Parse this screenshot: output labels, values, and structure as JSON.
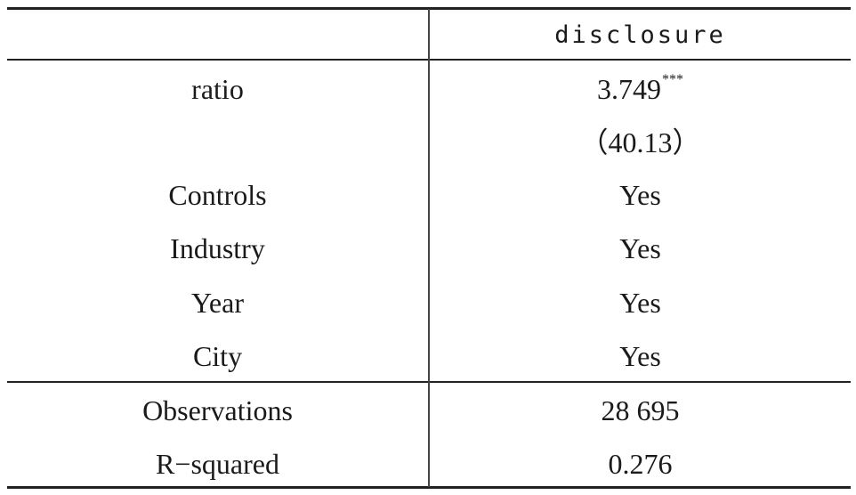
{
  "table": {
    "header": {
      "col1": "",
      "col2": "disclosure"
    },
    "ratio": {
      "label": "ratio",
      "coef": "3.749",
      "stars": "***",
      "tstat": "（40.13）"
    },
    "controls": {
      "label": "Controls",
      "value": "Yes"
    },
    "industry": {
      "label": "Industry",
      "value": "Yes"
    },
    "year": {
      "label": "Year",
      "value": "Yes"
    },
    "city": {
      "label": "City",
      "value": "Yes"
    },
    "observations": {
      "label": "Observations",
      "value": "28 695"
    },
    "rsquared": {
      "label": "R−squared",
      "value": "0.276"
    }
  }
}
